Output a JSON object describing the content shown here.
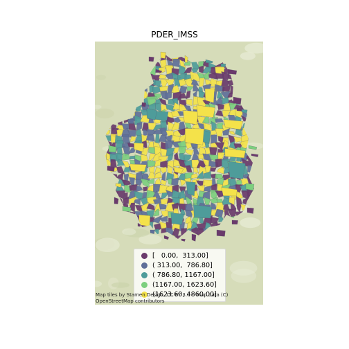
{
  "title": "PDER_IMSS",
  "legend": {
    "items": [
      {
        "label": "[   0.00,  313.00]",
        "color": "#6a3a6c"
      },
      {
        "label": "( 313.00,  786.80]",
        "color": "#5f6f99"
      },
      {
        "label": "( 786.80, 1167.00]",
        "color": "#4e9c9a"
      },
      {
        "label": "(1167.00, 1623.60]",
        "color": "#7ccf7e"
      },
      {
        "label": "(1623.60, 4860.00]",
        "color": "#f4e24a"
      }
    ]
  },
  "attribution": {
    "line1": "Map tiles by Stamen Design, CC BY 3.0 -- Map data (C)",
    "line2": "OpenStreetMap contributors"
  },
  "colors": {
    "basemap": "#d6dcb9",
    "basemap_light": "#e8ecd6"
  }
}
